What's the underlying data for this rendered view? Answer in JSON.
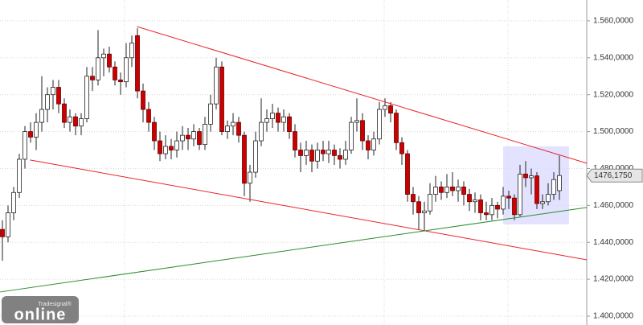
{
  "chart_data": {
    "type": "candlestick",
    "ylim": [
      1395.2,
      1571.3
    ],
    "yticks": [
      {
        "value": 1400,
        "label": "1.400,0000"
      },
      {
        "value": 1420,
        "label": "1.420,0000"
      },
      {
        "value": 1440,
        "label": "1.440,0000"
      },
      {
        "value": 1460,
        "label": "1.460,0000"
      },
      {
        "value": 1480,
        "label": "1.480,0000"
      },
      {
        "value": 1500,
        "label": "1.500,0000"
      },
      {
        "value": 1520,
        "label": "1.520,0000"
      },
      {
        "value": 1540,
        "label": "1.540,0000"
      },
      {
        "value": 1560,
        "label": "1.560,0000"
      }
    ],
    "grid": true,
    "up_color": "#ffffff",
    "down_color": "#cc0000",
    "ohlc": [
      [
        1447,
        1452,
        1430,
        1443
      ],
      [
        1443,
        1460,
        1440,
        1456
      ],
      [
        1456,
        1470,
        1452,
        1467
      ],
      [
        1467,
        1488,
        1464,
        1485
      ],
      [
        1485,
        1503,
        1480,
        1500
      ],
      [
        1500,
        1505,
        1494,
        1497
      ],
      [
        1497,
        1510,
        1490,
        1505
      ],
      [
        1505,
        1530,
        1500,
        1512
      ],
      [
        1512,
        1524,
        1505,
        1520
      ],
      [
        1520,
        1528,
        1512,
        1524
      ],
      [
        1524,
        1528,
        1510,
        1515
      ],
      [
        1515,
        1518,
        1502,
        1505
      ],
      [
        1505,
        1512,
        1500,
        1508
      ],
      [
        1508,
        1510,
        1498,
        1503
      ],
      [
        1503,
        1510,
        1498,
        1507
      ],
      [
        1507,
        1535,
        1505,
        1530
      ],
      [
        1530,
        1535,
        1522,
        1528
      ],
      [
        1528,
        1555,
        1525,
        1540
      ],
      [
        1540,
        1545,
        1530,
        1542
      ],
      [
        1542,
        1546,
        1532,
        1535
      ],
      [
        1535,
        1538,
        1525,
        1528
      ],
      [
        1528,
        1532,
        1520,
        1527
      ],
      [
        1527,
        1548,
        1524,
        1540
      ],
      [
        1540,
        1552,
        1535,
        1548
      ],
      [
        1552,
        1556,
        1518,
        1522
      ],
      [
        1522,
        1526,
        1505,
        1512
      ],
      [
        1512,
        1516,
        1500,
        1505
      ],
      [
        1505,
        1508,
        1490,
        1495
      ],
      [
        1495,
        1500,
        1484,
        1488
      ],
      [
        1488,
        1498,
        1485,
        1492
      ],
      [
        1492,
        1496,
        1485,
        1490
      ],
      [
        1490,
        1500,
        1486,
        1495
      ],
      [
        1495,
        1503,
        1490,
        1498
      ],
      [
        1498,
        1502,
        1490,
        1496
      ],
      [
        1496,
        1504,
        1492,
        1500
      ],
      [
        1500,
        1502,
        1490,
        1493
      ],
      [
        1493,
        1508,
        1490,
        1504
      ],
      [
        1504,
        1520,
        1500,
        1515
      ],
      [
        1515,
        1540,
        1512,
        1535
      ],
      [
        1535,
        1538,
        1498,
        1500
      ],
      [
        1500,
        1506,
        1496,
        1503
      ],
      [
        1503,
        1510,
        1498,
        1505
      ],
      [
        1505,
        1508,
        1494,
        1498
      ],
      [
        1498,
        1500,
        1465,
        1472
      ],
      [
        1472,
        1482,
        1462,
        1478
      ],
      [
        1478,
        1500,
        1475,
        1495
      ],
      [
        1495,
        1518,
        1492,
        1505
      ],
      [
        1505,
        1512,
        1500,
        1507
      ],
      [
        1507,
        1515,
        1502,
        1510
      ],
      [
        1510,
        1513,
        1500,
        1505
      ],
      [
        1505,
        1512,
        1500,
        1508
      ],
      [
        1508,
        1510,
        1496,
        1500
      ],
      [
        1500,
        1504,
        1486,
        1490
      ],
      [
        1490,
        1494,
        1478,
        1487
      ],
      [
        1487,
        1495,
        1482,
        1490
      ],
      [
        1490,
        1493,
        1478,
        1484
      ],
      [
        1484,
        1494,
        1480,
        1490
      ],
      [
        1490,
        1495,
        1484,
        1488
      ],
      [
        1488,
        1495,
        1483,
        1490
      ],
      [
        1490,
        1493,
        1482,
        1487
      ],
      [
        1487,
        1491,
        1480,
        1485
      ],
      [
        1485,
        1495,
        1482,
        1490
      ],
      [
        1490,
        1508,
        1488,
        1505
      ],
      [
        1505,
        1518,
        1500,
        1506
      ],
      [
        1506,
        1510,
        1490,
        1495
      ],
      [
        1495,
        1498,
        1485,
        1490
      ],
      [
        1490,
        1500,
        1487,
        1496
      ],
      [
        1496,
        1516,
        1493,
        1512
      ],
      [
        1512,
        1518,
        1508,
        1514
      ],
      [
        1514,
        1516,
        1505,
        1510
      ],
      [
        1510,
        1512,
        1490,
        1494
      ],
      [
        1494,
        1497,
        1482,
        1488
      ],
      [
        1488,
        1490,
        1462,
        1466
      ],
      [
        1466,
        1470,
        1455,
        1462
      ],
      [
        1462,
        1465,
        1447,
        1456
      ],
      [
        1456,
        1462,
        1446,
        1457
      ],
      [
        1457,
        1472,
        1455,
        1466
      ],
      [
        1466,
        1476,
        1462,
        1470
      ],
      [
        1470,
        1473,
        1463,
        1467
      ],
      [
        1467,
        1477,
        1464,
        1470
      ],
      [
        1470,
        1478,
        1465,
        1468
      ],
      [
        1468,
        1474,
        1462,
        1470
      ],
      [
        1470,
        1473,
        1460,
        1466
      ],
      [
        1466,
        1469,
        1457,
        1462
      ],
      [
        1462,
        1467,
        1456,
        1463
      ],
      [
        1463,
        1466,
        1452,
        1456
      ],
      [
        1456,
        1462,
        1452,
        1455
      ],
      [
        1455,
        1464,
        1452,
        1460
      ],
      [
        1460,
        1462,
        1453,
        1458
      ],
      [
        1458,
        1470,
        1455,
        1465
      ],
      [
        1465,
        1468,
        1458,
        1464
      ],
      [
        1464,
        1466,
        1452,
        1455
      ],
      [
        1455,
        1482,
        1454,
        1477
      ],
      [
        1477,
        1484,
        1470,
        1475
      ],
      [
        1475,
        1480,
        1466,
        1476
      ],
      [
        1476,
        1478,
        1458,
        1461
      ],
      [
        1461,
        1466,
        1458,
        1462
      ],
      [
        1462,
        1472,
        1460,
        1466
      ],
      [
        1466,
        1478,
        1463,
        1474
      ],
      [
        1468,
        1487,
        1463,
        1476.175
      ]
    ],
    "trendlines": [
      {
        "color": "#e8242c",
        "x": [
          23.9,
          103.9
        ],
        "values": [
          1556.9,
          1482.8
        ]
      },
      {
        "color": "#e8242c",
        "x": [
          4.9,
          103.9
        ],
        "values": [
          1484.6,
          1430.5
        ]
      },
      {
        "color": "#2e8b2e",
        "x": [
          -0.4,
          103.9
        ],
        "values": [
          1413.1,
          1458.9
        ]
      }
    ],
    "highlight": {
      "x": [
        89,
        100.7
      ],
      "values": [
        1492,
        1449.7
      ],
      "color": "#dcdcff"
    },
    "last_price": {
      "value": 1476.175,
      "label": "1476,1750"
    },
    "logo": {
      "brand": "Tradesignal®",
      "text": "online"
    }
  }
}
